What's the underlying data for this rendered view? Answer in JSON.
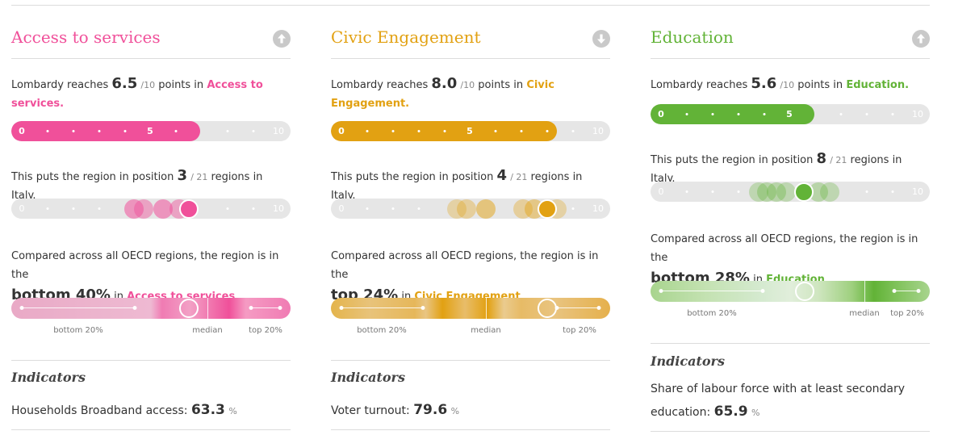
{
  "colors": {
    "pink": "#f0509a",
    "orange": "#e2a112",
    "green": "#62b337",
    "track": "#e6e6e6"
  },
  "common": {
    "reaches_prefix": "Lombardy reaches",
    "points_in": "points in",
    "of_ten": "/10",
    "position_prefix": "This puts the region in position",
    "of_regions": "/ 21",
    "regions_suffix": "regions in Italy.",
    "compared_text": "Compared across all OECD regions, the region is in the",
    "in_word": "in",
    "bottom20": "bottom 20%",
    "median": "median",
    "top20": "top 20%",
    "indicators_title": "Indicators",
    "scale_min": "0",
    "scale_mid": "5",
    "scale_max": "10"
  },
  "panels": [
    {
      "title": "Access to services",
      "arrow_icon": "arrow-up-circle-icon",
      "score": "6.5",
      "score_fraction": 0.65,
      "topic": "Access to services.",
      "position": "3",
      "rank": "bottom 40%",
      "rank_topic": "Access to services",
      "marker_fraction": 0.53,
      "indicator_label": "Households Broadband access:",
      "indicator_value": "63.3",
      "indicator_unit": "%"
    },
    {
      "title": "Civic Engagement",
      "arrow_icon": "arrow-down-circle-icon",
      "score": "8.0",
      "score_fraction": 0.8,
      "topic": "Civic Engagement.",
      "position": "4",
      "rank": "top 24%",
      "rank_topic": "Civic Engagement",
      "marker_fraction": 0.72,
      "indicator_label": "Voter turnout:",
      "indicator_value": "79.6",
      "indicator_unit": "%"
    },
    {
      "title": "Education",
      "arrow_icon": "arrow-up-circle-icon",
      "score": "5.6",
      "score_fraction": 0.56,
      "topic": "Education.",
      "position": "8",
      "rank": "bottom 28%",
      "rank_topic": "Education",
      "marker_fraction": 0.55,
      "indicator_label": "Share of labour force with at least secondary education:",
      "indicator_value": "65.9",
      "indicator_unit": "%"
    }
  ]
}
